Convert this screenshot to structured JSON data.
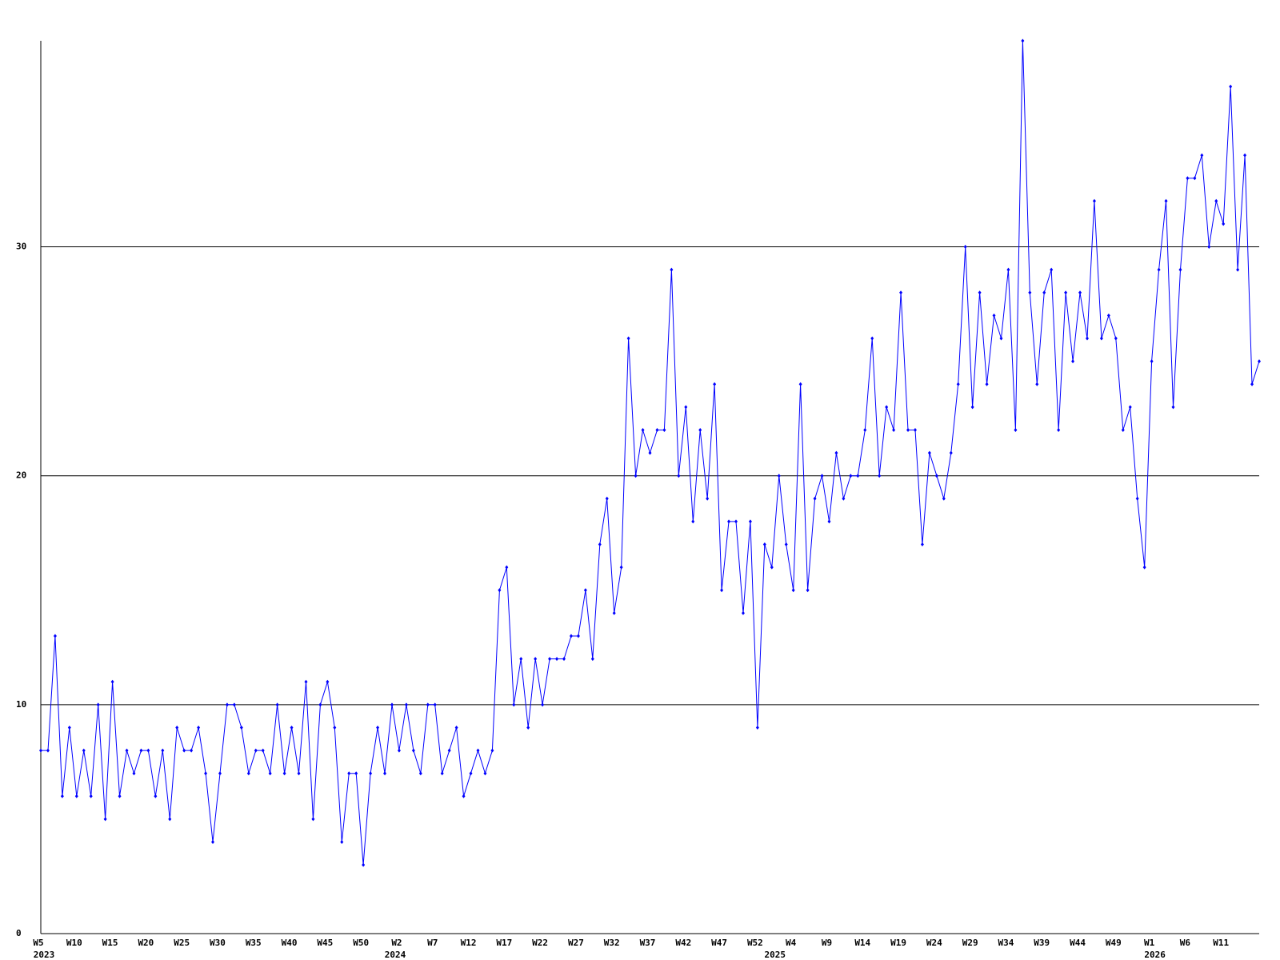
{
  "chart_data": {
    "type": "line",
    "categories": [
      "W5",
      null,
      null,
      null,
      null,
      "W10",
      null,
      null,
      null,
      null,
      "W15",
      null,
      null,
      null,
      null,
      "W20",
      null,
      null,
      null,
      null,
      "W25",
      null,
      null,
      null,
      null,
      "W30",
      null,
      null,
      null,
      null,
      "W35",
      null,
      null,
      null,
      null,
      "W40",
      null,
      null,
      null,
      null,
      "W45",
      null,
      null,
      null,
      null,
      "W50",
      null,
      null,
      null,
      null,
      "W2",
      null,
      null,
      null,
      null,
      "W7",
      null,
      null,
      null,
      null,
      "W12",
      null,
      null,
      null,
      null,
      "W17",
      null,
      null,
      null,
      null,
      "W22",
      null,
      null,
      null,
      null,
      "W27",
      null,
      null,
      null,
      null,
      "W32",
      null,
      null,
      null,
      null,
      "W37",
      null,
      null,
      null,
      null,
      "W42",
      null,
      null,
      null,
      null,
      "W47",
      null,
      null,
      null,
      null,
      "W52",
      null,
      null,
      null,
      null,
      "W4",
      null,
      null,
      null,
      null,
      "W9",
      null,
      null,
      null,
      null,
      "W14",
      null,
      null,
      null,
      null,
      "W19",
      null,
      null,
      null,
      null,
      "W24",
      null,
      null,
      null,
      null,
      "W29",
      null,
      null,
      null,
      null,
      "W34",
      null,
      null,
      null,
      null,
      "W39",
      null,
      null,
      null,
      null,
      "W44",
      null,
      null,
      null,
      null,
      "W49",
      null,
      null,
      null,
      null,
      "W1",
      null,
      null,
      null,
      null,
      "W6",
      null,
      null,
      null,
      null,
      "W11",
      null,
      null,
      null,
      null,
      null
    ],
    "category_groups": [
      {
        "label": "2023",
        "start": 0
      },
      {
        "label": "2024",
        "start": 49
      },
      {
        "label": "2025",
        "start": 102
      },
      {
        "label": "2026",
        "start": 155
      }
    ],
    "series": [
      {
        "color": "#0000ff",
        "values": [
          8,
          8,
          13,
          6,
          9,
          6,
          8,
          6,
          10,
          5,
          11,
          6,
          8,
          7,
          8,
          8,
          6,
          8,
          5,
          9,
          8,
          8,
          9,
          7,
          4,
          7,
          10,
          10,
          9,
          7,
          8,
          8,
          7,
          10,
          7,
          9,
          7,
          11,
          5,
          10,
          11,
          9,
          4,
          7,
          7,
          3,
          7,
          9,
          7,
          10,
          8,
          10,
          8,
          7,
          10,
          10,
          7,
          8,
          9,
          6,
          7,
          8,
          7,
          8,
          15,
          16,
          10,
          12,
          9,
          12,
          10,
          12,
          12,
          12,
          13,
          13,
          15,
          12,
          17,
          19,
          14,
          16,
          26,
          20,
          22,
          21,
          22,
          22,
          29,
          20,
          23,
          18,
          22,
          19,
          24,
          15,
          18,
          18,
          14,
          18,
          9,
          17,
          16,
          20,
          17,
          15,
          24,
          15,
          19,
          20,
          18,
          21,
          19,
          20,
          20,
          22,
          26,
          20,
          23,
          22,
          28,
          22,
          22,
          17,
          21,
          20,
          19,
          21,
          24,
          30,
          23,
          28,
          24,
          27,
          26,
          29,
          22,
          39,
          28,
          24,
          28,
          29,
          22,
          28,
          25,
          28,
          26,
          32,
          26,
          27,
          26,
          22,
          23,
          19,
          16,
          25,
          29,
          32,
          23,
          29,
          33,
          33,
          34,
          30,
          32,
          31,
          37,
          29,
          34,
          24,
          25
        ]
      }
    ],
    "ylim": [
      0,
      39
    ],
    "yticks": [
      0,
      10,
      20,
      30
    ],
    "grid": true
  }
}
